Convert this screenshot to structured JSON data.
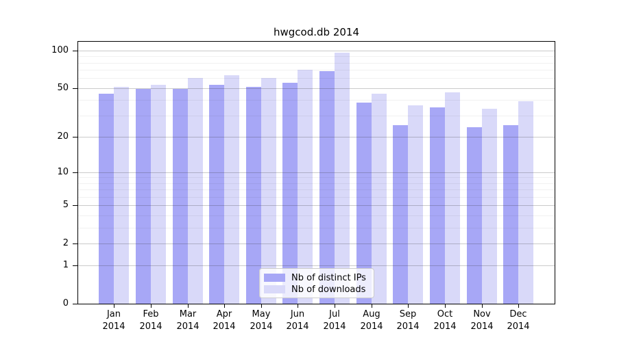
{
  "chart_data": {
    "type": "bar",
    "title": "hwgcod.db 2014",
    "categories": [
      "Jan",
      "Feb",
      "Mar",
      "Apr",
      "May",
      "Jun",
      "Jul",
      "Aug",
      "Sep",
      "Oct",
      "Nov",
      "Dec"
    ],
    "x_tick_second_line": "2014",
    "series": [
      {
        "name": "Nb of distinct IPs",
        "color": "#a7a7f6",
        "values": [
          45,
          49,
          49,
          53,
          51,
          55,
          68,
          38,
          25,
          35,
          24,
          25
        ]
      },
      {
        "name": "Nb of downloads",
        "color": "#d9d9f9",
        "values": [
          51,
          53,
          60,
          63,
          60,
          70,
          96,
          45,
          36,
          46,
          34,
          39
        ]
      }
    ],
    "xlabel": "",
    "ylabel": "",
    "yscale": "log1p",
    "ylim": [
      0,
      117.5
    ],
    "yticks": [
      0,
      1,
      2,
      5,
      10,
      20,
      50,
      100
    ],
    "yticks_minor": [
      3,
      4,
      6,
      7,
      8,
      9,
      30,
      40,
      60,
      70,
      80,
      90
    ],
    "grid": "horizontal major+minor",
    "legend_position": "lower center"
  }
}
